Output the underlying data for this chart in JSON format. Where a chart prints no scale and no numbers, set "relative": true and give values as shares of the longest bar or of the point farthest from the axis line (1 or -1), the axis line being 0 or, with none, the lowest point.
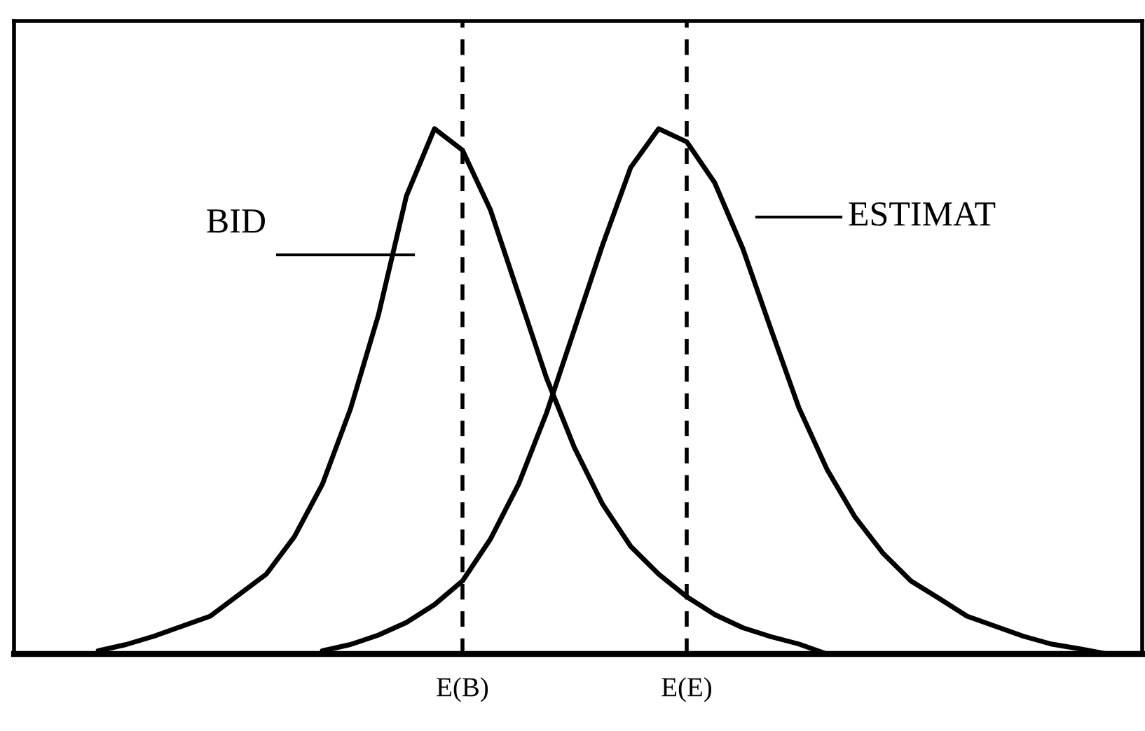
{
  "chart_data": {
    "type": "line",
    "relative": true,
    "line_style": "solid",
    "categories": [
      null,
      null,
      null,
      null,
      null,
      null,
      null,
      null,
      null,
      null,
      null,
      null,
      null,
      null,
      "E(B)",
      null,
      null,
      null,
      null,
      null,
      null,
      null,
      "E(E)",
      null,
      null,
      null,
      null,
      null,
      null,
      null,
      null,
      null,
      null,
      null,
      null,
      null,
      null,
      null,
      null
    ],
    "series": [
      {
        "color": "#000000",
        "values": [
          null,
          0.006,
          0.018,
          0.034,
          0.053,
          0.072,
          0.112,
          0.152,
          0.223,
          0.323,
          0.466,
          0.645,
          0.872,
          1,
          0.959,
          0.845,
          0.685,
          0.525,
          0.392,
          0.285,
          0.205,
          0.152,
          0.109,
          0.075,
          0.05,
          0.033,
          0.019,
          0,
          null,
          null,
          null,
          null,
          null,
          null,
          null,
          null,
          null,
          null,
          null
        ]
      },
      {
        "color": "#000000",
        "values": [
          null,
          null,
          null,
          null,
          null,
          null,
          null,
          null,
          null,
          0.006,
          0.018,
          0.036,
          0.06,
          0.094,
          0.139,
          0.219,
          0.323,
          0.459,
          0.619,
          0.779,
          0.926,
          1,
          0.975,
          0.897,
          0.772,
          0.619,
          0.469,
          0.352,
          0.261,
          0.192,
          0.139,
          0.106,
          0.072,
          0.053,
          0.034,
          0.019,
          0.01,
          0,
          null
        ]
      }
    ],
    "ref_lines": [
      {
        "axis": "x",
        "value": "E(B)",
        "color": "#000000",
        "line_style": "dashed"
      },
      {
        "axis": "x",
        "value": "E(E)",
        "color": "#000000",
        "line_style": "dashed"
      }
    ],
    "annotations": [
      "BID",
      "ESTIMAT"
    ]
  }
}
